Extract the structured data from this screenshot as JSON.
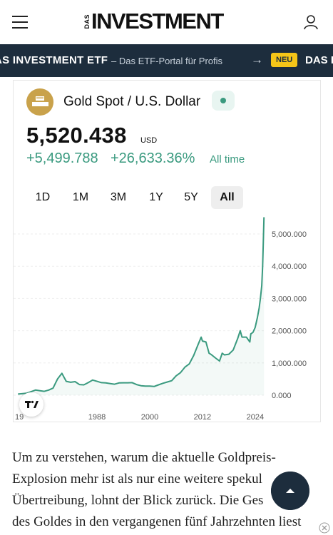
{
  "header": {
    "logo_prefix": "DAS",
    "logo_main": "INVESTMENT",
    "menu_icon": "hamburger-menu-icon",
    "user_icon": "user-icon"
  },
  "ticker": {
    "title": "AS INVESTMENT ETF",
    "subtitle": "– Das ETF-Portal für Profis",
    "arrow": "→",
    "badge": "NEU",
    "title_repeat": "DAS IN",
    "background_color": "#1d2d3d",
    "badge_color": "#f5c518"
  },
  "widget": {
    "symbol_icon": "gold-bars-icon",
    "symbol_name": "Gold Spot / U.S. Dollar",
    "status_icon": "market-open-dot-icon",
    "price": "5,520.438",
    "currency": "USD",
    "change_abs": "+5,499.788",
    "change_pct": "+26,633.36%",
    "change_period": "All time",
    "accent_color": "#3a9a7f",
    "ranges": [
      "1D",
      "1M",
      "3M",
      "1Y",
      "5Y",
      "All"
    ],
    "active_range": "All",
    "tv_logo": "tradingview-logo-icon"
  },
  "chart_data": {
    "type": "area",
    "title": "",
    "xlabel": "",
    "ylabel": "",
    "x_tick_labels": [
      "19",
      "1988",
      "2000",
      "2012",
      "2024"
    ],
    "y_tick_labels": [
      "5,000.000",
      "4,000.000",
      "3,000.000",
      "2,000.000",
      "1,000.000",
      "0.000"
    ],
    "xlim": [
      1969,
      2025
    ],
    "ylim": [
      -200,
      5500
    ],
    "grid": "horizontal dashed",
    "series": [
      {
        "color": "#3a9a7f",
        "points": [
          [
            1970,
            35
          ],
          [
            1972,
            60
          ],
          [
            1974,
            160
          ],
          [
            1975,
            140
          ],
          [
            1976,
            120
          ],
          [
            1977,
            160
          ],
          [
            1978,
            220
          ],
          [
            1979,
            500
          ],
          [
            1980,
            680
          ],
          [
            1981,
            430
          ],
          [
            1982,
            400
          ],
          [
            1983,
            420
          ],
          [
            1984,
            330
          ],
          [
            1985,
            320
          ],
          [
            1986,
            390
          ],
          [
            1987,
            470
          ],
          [
            1988,
            430
          ],
          [
            1989,
            390
          ],
          [
            1990,
            380
          ],
          [
            1991,
            360
          ],
          [
            1992,
            340
          ],
          [
            1993,
            380
          ],
          [
            1994,
            385
          ],
          [
            1995,
            385
          ],
          [
            1996,
            390
          ],
          [
            1997,
            330
          ],
          [
            1998,
            295
          ],
          [
            1999,
            280
          ],
          [
            2000,
            280
          ],
          [
            2001,
            270
          ],
          [
            2002,
            320
          ],
          [
            2003,
            370
          ],
          [
            2004,
            410
          ],
          [
            2005,
            450
          ],
          [
            2006,
            600
          ],
          [
            2007,
            700
          ],
          [
            2008,
            870
          ],
          [
            2009,
            970
          ],
          [
            2010,
            1230
          ],
          [
            2011,
            1570
          ],
          [
            2011.7,
            1800
          ],
          [
            2012,
            1680
          ],
          [
            2012.8,
            1650
          ],
          [
            2013.5,
            1300
          ],
          [
            2014,
            1260
          ],
          [
            2015,
            1150
          ],
          [
            2015.9,
            1060
          ],
          [
            2016.5,
            1300
          ],
          [
            2017,
            1250
          ],
          [
            2018,
            1270
          ],
          [
            2019,
            1400
          ],
          [
            2020,
            1750
          ],
          [
            2020.6,
            2000
          ],
          [
            2021,
            1800
          ],
          [
            2022,
            1800
          ],
          [
            2022.8,
            1650
          ],
          [
            2023,
            1900
          ],
          [
            2023.5,
            1950
          ],
          [
            2024,
            2100
          ],
          [
            2024.5,
            2400
          ],
          [
            2024.9,
            2700
          ],
          [
            2025.2,
            3000
          ],
          [
            2025.5,
            3400
          ],
          [
            2025.7,
            4000
          ],
          [
            2025.85,
            4700
          ],
          [
            2026,
            5520
          ]
        ]
      }
    ]
  },
  "article": {
    "lines": [
      "Um zu verstehen, warum die aktuelle Goldpreis-",
      "Explosion mehr ist als nur eine weitere spekul",
      "Übertreibung, lohnt der Blick zurück. Die Ges    te",
      "des Goldes in den vergangenen fünf Jahrzehnten liest"
    ],
    "scroll_top_icon": "arrow-up-icon",
    "ad_close_icon": "close-icon"
  }
}
